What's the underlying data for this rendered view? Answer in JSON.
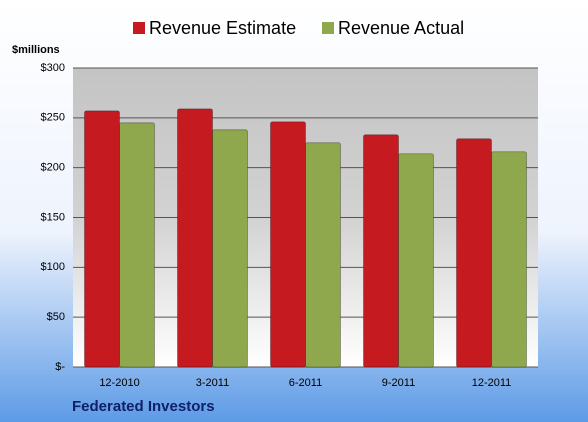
{
  "chart_data": {
    "type": "bar",
    "title": "Federated Investors",
    "y_axis_label": "$millions",
    "categories": [
      "12-2010",
      "3-2011",
      "6-2011",
      "9-2011",
      "12-2011"
    ],
    "series": [
      {
        "name": "Revenue Estimate",
        "color": "#c41a20",
        "values": [
          257,
          259,
          246,
          233,
          229
        ]
      },
      {
        "name": "Revenue Actual",
        "color": "#8fa84e",
        "values": [
          245,
          238,
          225,
          214,
          216
        ]
      }
    ],
    "ylim": [
      0,
      300
    ],
    "yticks": [
      {
        "value": 0,
        "label": "$-"
      },
      {
        "value": 50,
        "label": "$50"
      },
      {
        "value": 100,
        "label": "$100"
      },
      {
        "value": 150,
        "label": "$150"
      },
      {
        "value": 200,
        "label": "$200"
      },
      {
        "value": 250,
        "label": "$250"
      },
      {
        "value": 300,
        "label": "$300"
      }
    ],
    "grid": true,
    "legend": "top"
  }
}
